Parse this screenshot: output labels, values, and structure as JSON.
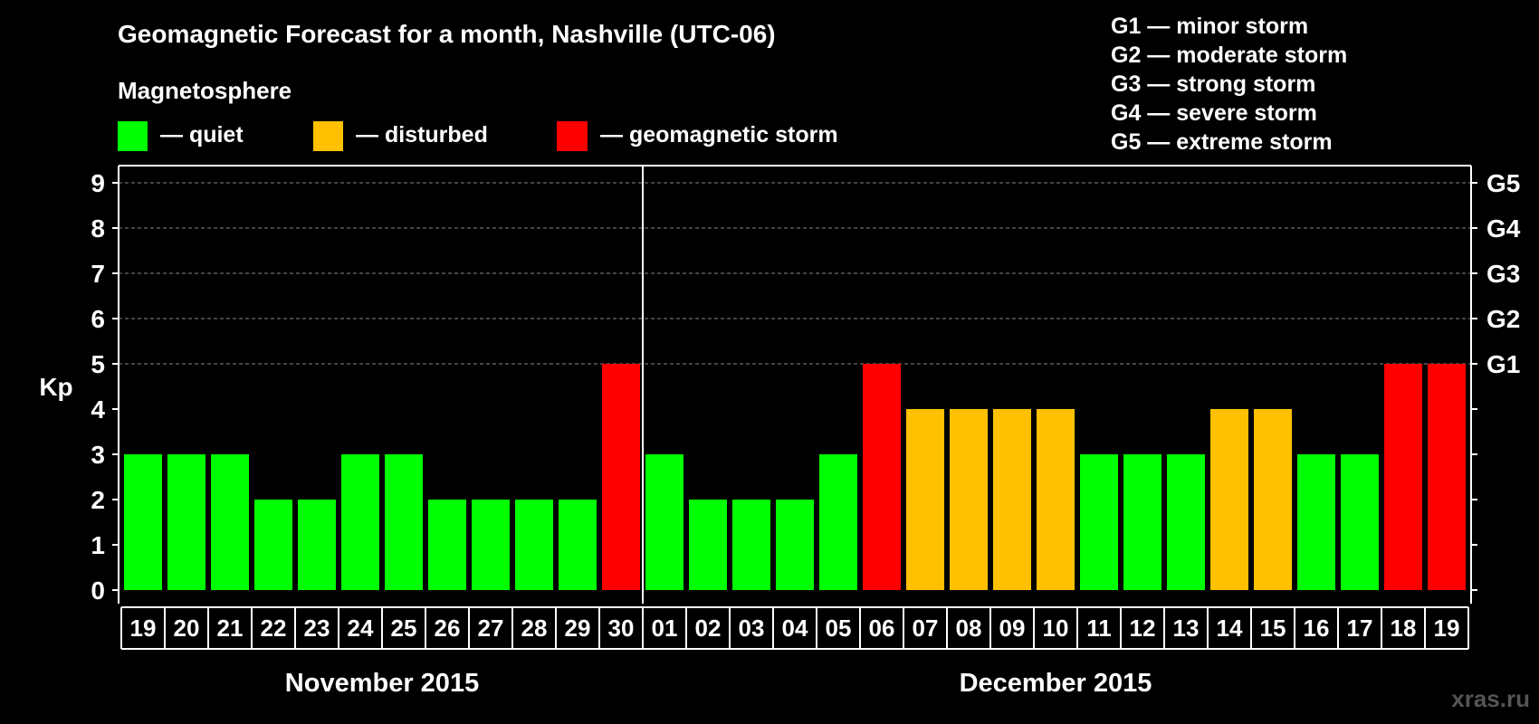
{
  "chart_data": {
    "type": "bar",
    "title": "Geomagnetic Forecast for a month, Nashville (UTC-06)",
    "ylabel": "Kp",
    "ylim": [
      0,
      9
    ],
    "yticks": [
      "0",
      "1",
      "2",
      "3",
      "4",
      "5",
      "6",
      "7",
      "8",
      "9"
    ],
    "storm_scale": [
      {
        "level": "G1",
        "kp": 5
      },
      {
        "level": "G2",
        "kp": 6
      },
      {
        "level": "G3",
        "kp": 7
      },
      {
        "level": "G4",
        "kp": 8
      },
      {
        "level": "G5",
        "kp": 9
      }
    ],
    "legend_title": "Magnetosphere",
    "legend": [
      {
        "label": "— quiet",
        "color": "#00ff00"
      },
      {
        "label": "— disturbed",
        "color": "#ffc000"
      },
      {
        "label": "— geomagnetic storm",
        "color": "#ff0000"
      }
    ],
    "storm_legend": [
      "G1 — minor storm",
      "G2 — moderate storm",
      "G3 — strong storm",
      "G4 — severe storm",
      "G5 — extreme storm"
    ],
    "months": [
      {
        "label": "November 2015",
        "day_count": 12
      },
      {
        "label": "December 2015",
        "day_count": 19
      }
    ],
    "categories": [
      "19",
      "20",
      "21",
      "22",
      "23",
      "24",
      "25",
      "26",
      "27",
      "28",
      "29",
      "30",
      "01",
      "02",
      "03",
      "04",
      "05",
      "06",
      "07",
      "08",
      "09",
      "10",
      "11",
      "12",
      "13",
      "14",
      "15",
      "16",
      "17",
      "18",
      "19"
    ],
    "values": [
      3,
      3,
      3,
      2,
      2,
      3,
      3,
      2,
      2,
      2,
      2,
      5,
      3,
      2,
      2,
      2,
      3,
      5,
      4,
      4,
      4,
      4,
      3,
      3,
      3,
      4,
      4,
      3,
      3,
      5,
      5
    ],
    "colors": {
      "quiet": "#00ff00",
      "disturbed": "#ffc000",
      "storm": "#ff0000"
    },
    "grid_color": "#888888"
  },
  "watermark": "xras.ru"
}
